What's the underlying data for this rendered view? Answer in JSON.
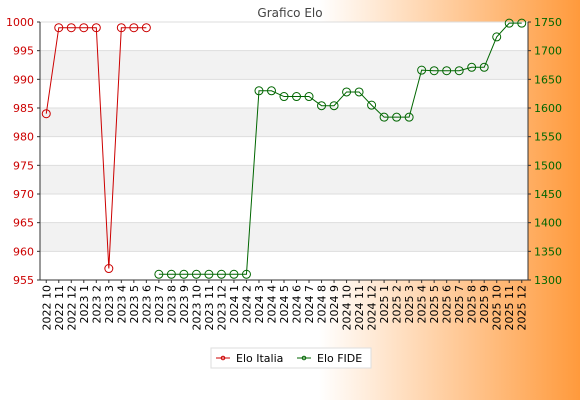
{
  "chart_data": {
    "type": "line",
    "title": "Grafico Elo",
    "categories": [
      "2022 10",
      "2022 11",
      "2022 12",
      "2023 1",
      "2023 2",
      "2023 3",
      "2023 4",
      "2023 5",
      "2023 6",
      "2023 7",
      "2023 8",
      "2023 9",
      "2023 10",
      "2023 11",
      "2023 12",
      "2024 1",
      "2024 2",
      "2024 3",
      "2024 4",
      "2024 5",
      "2024 6",
      "2024 7",
      "2024 8",
      "2024 9",
      "2024 10",
      "2024 11",
      "2024 12",
      "2025 1",
      "2025 2",
      "2025 3",
      "2025 4",
      "2025 5",
      "2025 6",
      "2025 7",
      "2025 8",
      "2025 9",
      "2025 10",
      "2025 11",
      "2025 12"
    ],
    "y_left": {
      "min": 955,
      "max": 1000,
      "ticks": [
        955,
        960,
        965,
        970,
        975,
        980,
        985,
        990,
        995,
        1000
      ],
      "color": "#cc0000"
    },
    "y_right": {
      "min": 1300,
      "max": 1750,
      "ticks": [
        1300,
        1350,
        1400,
        1450,
        1500,
        1550,
        1600,
        1650,
        1700,
        1750
      ],
      "color": "#006600"
    },
    "series": [
      {
        "name": "Elo Italia",
        "axis": "left",
        "color": "#cc0000",
        "values": [
          984,
          999,
          999,
          999,
          999,
          957,
          999,
          999,
          999,
          null,
          null,
          null,
          null,
          null,
          null,
          null,
          null,
          null,
          null,
          null,
          null,
          null,
          null,
          null,
          null,
          null,
          null,
          null,
          null,
          null,
          null,
          null,
          null,
          null,
          null,
          null,
          null,
          null,
          null
        ]
      },
      {
        "name": "Elo FIDE",
        "axis": "right",
        "color": "#006600",
        "values": [
          null,
          null,
          null,
          null,
          null,
          null,
          null,
          null,
          null,
          1310,
          1310,
          1310,
          1310,
          1310,
          1310,
          1310,
          1310,
          1630,
          1630,
          1620,
          1620,
          1620,
          1604,
          1604,
          1628,
          1628,
          1605,
          1584,
          1584,
          1584,
          1666,
          1665,
          1665,
          1665,
          1671,
          1671,
          1724,
          1748,
          1748
        ]
      }
    ],
    "grid": true,
    "legend_position": "bottom"
  }
}
